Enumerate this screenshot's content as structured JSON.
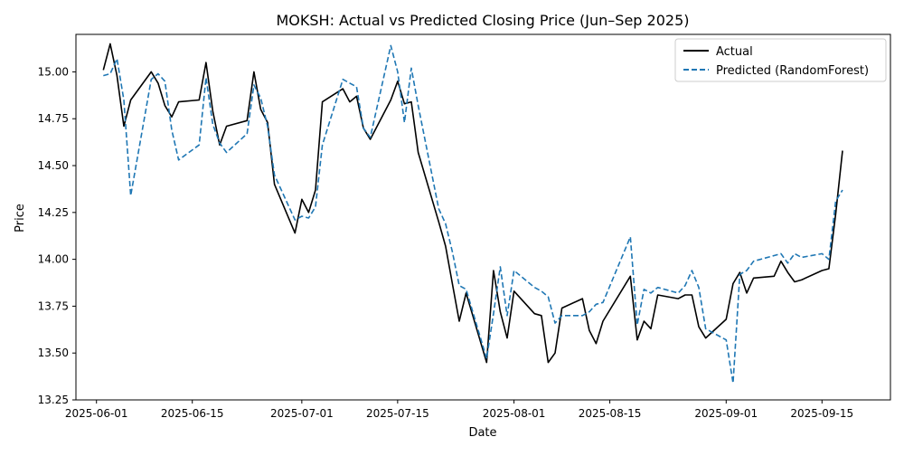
{
  "chart_data": {
    "type": "line",
    "title": "MOKSH: Actual vs Predicted Closing Price (Jun–Sep 2025)",
    "xlabel": "Date",
    "ylabel": "Price",
    "xlim": [
      "2025-05-29",
      "2025-09-25"
    ],
    "ylim": [
      13.25,
      15.2
    ],
    "x_ticks": [
      "2025-06-01",
      "2025-06-15",
      "2025-07-01",
      "2025-07-15",
      "2025-08-01",
      "2025-08-15",
      "2025-09-01",
      "2025-09-15"
    ],
    "y_ticks": [
      "13.25",
      "13.50",
      "13.75",
      "14.00",
      "14.25",
      "14.50",
      "14.75",
      "15.00"
    ],
    "grid": false,
    "legend_position": "top-right",
    "series": [
      {
        "name": "Actual",
        "color": "#000000",
        "style": "solid",
        "points": [
          [
            "2025-06-02",
            15.01
          ],
          [
            "2025-06-03",
            15.15
          ],
          [
            "2025-06-04",
            14.98
          ],
          [
            "2025-06-05",
            14.71
          ],
          [
            "2025-06-06",
            14.85
          ],
          [
            "2025-06-09",
            15.0
          ],
          [
            "2025-06-10",
            14.94
          ],
          [
            "2025-06-11",
            14.82
          ],
          [
            "2025-06-12",
            14.76
          ],
          [
            "2025-06-13",
            14.84
          ],
          [
            "2025-06-16",
            14.85
          ],
          [
            "2025-06-17",
            15.05
          ],
          [
            "2025-06-18",
            14.79
          ],
          [
            "2025-06-19",
            14.61
          ],
          [
            "2025-06-20",
            14.71
          ],
          [
            "2025-06-23",
            14.74
          ],
          [
            "2025-06-24",
            15.0
          ],
          [
            "2025-06-25",
            14.8
          ],
          [
            "2025-06-26",
            14.73
          ],
          [
            "2025-06-27",
            14.4
          ],
          [
            "2025-06-30",
            14.14
          ],
          [
            "2025-07-01",
            14.32
          ],
          [
            "2025-07-02",
            14.25
          ],
          [
            "2025-07-03",
            14.37
          ],
          [
            "2025-07-04",
            14.84
          ],
          [
            "2025-07-07",
            14.91
          ],
          [
            "2025-07-08",
            14.84
          ],
          [
            "2025-07-09",
            14.87
          ],
          [
            "2025-07-10",
            14.7
          ],
          [
            "2025-07-11",
            14.64
          ],
          [
            "2025-07-14",
            14.85
          ],
          [
            "2025-07-15",
            14.95
          ],
          [
            "2025-07-16",
            14.83
          ],
          [
            "2025-07-17",
            14.84
          ],
          [
            "2025-07-18",
            14.57
          ],
          [
            "2025-07-21",
            14.2
          ],
          [
            "2025-07-22",
            14.07
          ],
          [
            "2025-07-23",
            13.87
          ],
          [
            "2025-07-24",
            13.67
          ],
          [
            "2025-07-25",
            13.82
          ],
          [
            "2025-07-28",
            13.45
          ],
          [
            "2025-07-29",
            13.94
          ],
          [
            "2025-07-30",
            13.72
          ],
          [
            "2025-07-31",
            13.58
          ],
          [
            "2025-08-01",
            13.83
          ],
          [
            "2025-08-04",
            13.71
          ],
          [
            "2025-08-05",
            13.7
          ],
          [
            "2025-08-06",
            13.45
          ],
          [
            "2025-08-07",
            13.5
          ],
          [
            "2025-08-08",
            13.74
          ],
          [
            "2025-08-11",
            13.79
          ],
          [
            "2025-08-12",
            13.62
          ],
          [
            "2025-08-13",
            13.55
          ],
          [
            "2025-08-14",
            13.67
          ],
          [
            "2025-08-18",
            13.91
          ],
          [
            "2025-08-19",
            13.57
          ],
          [
            "2025-08-20",
            13.67
          ],
          [
            "2025-08-21",
            13.63
          ],
          [
            "2025-08-22",
            13.81
          ],
          [
            "2025-08-25",
            13.79
          ],
          [
            "2025-08-26",
            13.81
          ],
          [
            "2025-08-27",
            13.81
          ],
          [
            "2025-08-28",
            13.64
          ],
          [
            "2025-08-29",
            13.58
          ],
          [
            "2025-09-01",
            13.68
          ],
          [
            "2025-09-02",
            13.87
          ],
          [
            "2025-09-03",
            13.93
          ],
          [
            "2025-09-04",
            13.82
          ],
          [
            "2025-09-05",
            13.9
          ],
          [
            "2025-09-08",
            13.91
          ],
          [
            "2025-09-09",
            13.99
          ],
          [
            "2025-09-10",
            13.93
          ],
          [
            "2025-09-11",
            13.88
          ],
          [
            "2025-09-12",
            13.89
          ],
          [
            "2025-09-15",
            13.94
          ],
          [
            "2025-09-16",
            13.95
          ],
          [
            "2025-09-17",
            14.24
          ],
          [
            "2025-09-18",
            14.58
          ]
        ]
      },
      {
        "name": "Predicted (RandomForest)",
        "color": "#1f77b4",
        "style": "dashed",
        "points": [
          [
            "2025-06-02",
            14.98
          ],
          [
            "2025-06-03",
            14.99
          ],
          [
            "2025-06-04",
            15.07
          ],
          [
            "2025-06-05",
            14.85
          ],
          [
            "2025-06-06",
            14.34
          ],
          [
            "2025-06-09",
            14.96
          ],
          [
            "2025-06-10",
            14.99
          ],
          [
            "2025-06-11",
            14.95
          ],
          [
            "2025-06-12",
            14.69
          ],
          [
            "2025-06-13",
            14.53
          ],
          [
            "2025-06-16",
            14.61
          ],
          [
            "2025-06-17",
            14.97
          ],
          [
            "2025-06-18",
            14.72
          ],
          [
            "2025-06-19",
            14.62
          ],
          [
            "2025-06-20",
            14.57
          ],
          [
            "2025-06-23",
            14.67
          ],
          [
            "2025-06-24",
            14.93
          ],
          [
            "2025-06-25",
            14.86
          ],
          [
            "2025-06-26",
            14.71
          ],
          [
            "2025-06-27",
            14.45
          ],
          [
            "2025-06-30",
            14.21
          ],
          [
            "2025-07-01",
            14.23
          ],
          [
            "2025-07-02",
            14.22
          ],
          [
            "2025-07-03",
            14.28
          ],
          [
            "2025-07-04",
            14.61
          ],
          [
            "2025-07-07",
            14.96
          ],
          [
            "2025-07-08",
            14.94
          ],
          [
            "2025-07-09",
            14.92
          ],
          [
            "2025-07-10",
            14.7
          ],
          [
            "2025-07-11",
            14.65
          ],
          [
            "2025-07-14",
            15.14
          ],
          [
            "2025-07-15",
            15.0
          ],
          [
            "2025-07-16",
            14.73
          ],
          [
            "2025-07-17",
            15.02
          ],
          [
            "2025-07-18",
            14.82
          ],
          [
            "2025-07-21",
            14.27
          ],
          [
            "2025-07-22",
            14.19
          ],
          [
            "2025-07-23",
            14.04
          ],
          [
            "2025-07-24",
            13.86
          ],
          [
            "2025-07-25",
            13.84
          ],
          [
            "2025-07-28",
            13.47
          ],
          [
            "2025-07-29",
            13.71
          ],
          [
            "2025-07-30",
            13.96
          ],
          [
            "2025-07-31",
            13.7
          ],
          [
            "2025-08-01",
            13.94
          ],
          [
            "2025-08-04",
            13.85
          ],
          [
            "2025-08-05",
            13.83
          ],
          [
            "2025-08-06",
            13.8
          ],
          [
            "2025-08-07",
            13.66
          ],
          [
            "2025-08-08",
            13.7
          ],
          [
            "2025-08-11",
            13.7
          ],
          [
            "2025-08-12",
            13.72
          ],
          [
            "2025-08-13",
            13.76
          ],
          [
            "2025-08-14",
            13.77
          ],
          [
            "2025-08-18",
            14.12
          ],
          [
            "2025-08-19",
            13.65
          ],
          [
            "2025-08-20",
            13.84
          ],
          [
            "2025-08-21",
            13.82
          ],
          [
            "2025-08-22",
            13.85
          ],
          [
            "2025-08-25",
            13.82
          ],
          [
            "2025-08-26",
            13.86
          ],
          [
            "2025-08-27",
            13.94
          ],
          [
            "2025-08-28",
            13.85
          ],
          [
            "2025-08-29",
            13.63
          ],
          [
            "2025-09-01",
            13.57
          ],
          [
            "2025-09-02",
            13.34
          ],
          [
            "2025-09-03",
            13.92
          ],
          [
            "2025-09-04",
            13.94
          ],
          [
            "2025-09-05",
            13.99
          ],
          [
            "2025-09-08",
            14.02
          ],
          [
            "2025-09-09",
            14.03
          ],
          [
            "2025-09-10",
            13.98
          ],
          [
            "2025-09-11",
            14.03
          ],
          [
            "2025-09-12",
            14.01
          ],
          [
            "2025-09-15",
            14.03
          ],
          [
            "2025-09-16",
            14.0
          ],
          [
            "2025-09-17",
            14.31
          ],
          [
            "2025-09-18",
            14.37
          ]
        ]
      }
    ]
  }
}
